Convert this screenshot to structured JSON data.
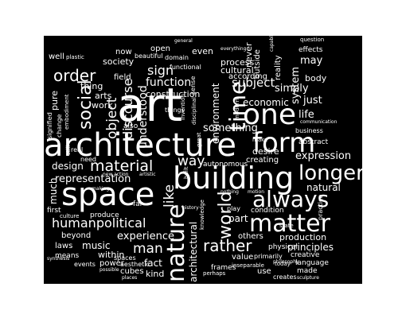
{
  "background_color": "#ffffff",
  "cloud_background_color": "#000000",
  "word_color": "#ffffff",
  "words": {
    "art": "art",
    "architecture": "architecture",
    "space": "space",
    "building": "building",
    "nature": "nature",
    "form": "form",
    "one": "one",
    "matter": "matter",
    "always": "always",
    "longer": "longer",
    "material": "material",
    "representation": "representation",
    "humanpolitical": "humanpolitical",
    "time": "time",
    "social": "social",
    "order": "order",
    "world": "world",
    "object": "object",
    "discourse": "discourse",
    "understood": "understood",
    "function": "function",
    "construction": "construction",
    "sign": "sign",
    "environment": "environment",
    "subject": "subject",
    "economic": "economic",
    "process": "process",
    "cultural": "cultural",
    "according": "according",
    "something": "something",
    "desire": "desire",
    "creating": "creating",
    "expression": "expression",
    "life": "life",
    "simply": "simply",
    "just": "just",
    "body": "body",
    "may": "may",
    "system": "system",
    "design": "design",
    "way": "way",
    "like": "like",
    "experience": "experience",
    "beyond": "beyond",
    "music": "music",
    "laws": "laws",
    "within": "within",
    "means": "means",
    "fact": "fact",
    "kind": "kind",
    "man": "man",
    "power": "power",
    "rather": "rather",
    "others": "others",
    "value": "value",
    "primarily": "primarily",
    "production": "production",
    "principles": "principles",
    "creative": "creative",
    "language": "language",
    "made": "made",
    "use": "use",
    "creates": "creates",
    "natural": "natural",
    "condition": "condition",
    "part": "part",
    "architectural": "architectural",
    "society": "society",
    "arts": "arts",
    "thing": "thing",
    "work": "work",
    "now": "now",
    "open": "open",
    "even": "even",
    "field": "field",
    "beautiful": "beautiful",
    "domain": "domain",
    "functional": "functional",
    "never": "never",
    "outside": "outside",
    "reality": "reality",
    "effects": "effects",
    "question": "question",
    "general": "general",
    "everything": "everything",
    "pure": "pure",
    "well": "well",
    "plastic": "plastic",
    "signified": "signified",
    "change": "change",
    "embodiment": "embodiment",
    "also": "also",
    "sense": "sense",
    "invention": "invention",
    "disciplinal": "disciplinal",
    "modern": "modern",
    "abstract": "abstract",
    "business": "business",
    "communication": "communication",
    "autonomous": "autonomous",
    "much": "much",
    "first": "first",
    "produce": "produce",
    "culture": "culture",
    "aesthetic": "aesthetic",
    "spaces": "spaces",
    "cubes": "cubes",
    "events": "events",
    "synthesis": "synthesis",
    "possible": "possible",
    "places": "places",
    "frames": "frames",
    "perhaps": "perhaps",
    "state": "state",
    "practice": "practice",
    "physical": "physical",
    "today": "today",
    "philosophy": "philosophy",
    "sculpture": "sculpture",
    "inseparable": "inseparable",
    "knowledge": "knowledge",
    "nothing": "nothing",
    "motion": "motion",
    "play": "play",
    "real": "real",
    "still": "still",
    "need": "need",
    "artistic": "artistic",
    "history": "history",
    "built": "built",
    "things": "things",
    "great": "great",
    "make": "make",
    "far": "far",
    "making": "making",
    "new": "new",
    "action": "action",
    "capable": "capable"
  }
}
